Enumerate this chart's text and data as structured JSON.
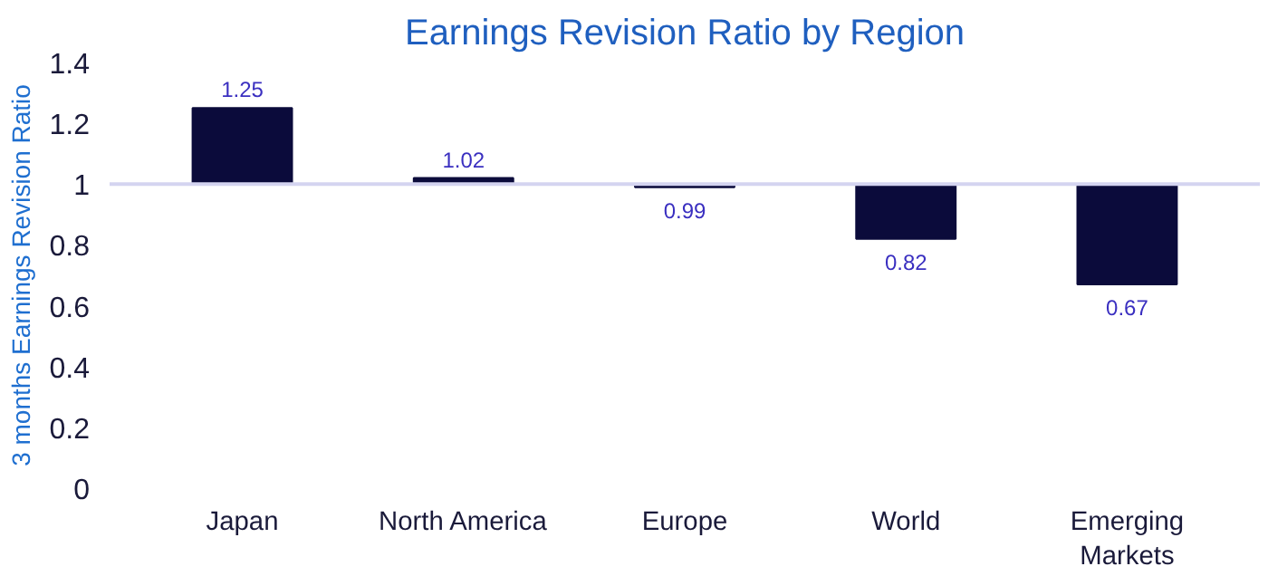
{
  "chart_data": {
    "type": "bar",
    "title": "Earnings Revision Ratio by Region",
    "ylabel": "3 months Earnings Revision Ratio",
    "categories": [
      "Japan",
      "North America",
      "Europe",
      "World",
      "Emerging Markets"
    ],
    "base": [
      1,
      1,
      1,
      1,
      1
    ],
    "values": [
      0.25,
      0.02,
      -0.01,
      -0.18,
      -0.33
    ],
    "value_labels": [
      "1.25",
      "1.02",
      "0.99",
      "0.82",
      "0.67"
    ],
    "color": "#0b0b3b",
    "ylim": [
      0,
      1.4
    ],
    "yticks": [
      0,
      0.2,
      0.4,
      0.6,
      0.8,
      1,
      1.2,
      1.4
    ],
    "ref_lines": [
      {
        "axis": "y",
        "value": 1,
        "color": "#d4d4f0"
      }
    ],
    "grid": false
  }
}
